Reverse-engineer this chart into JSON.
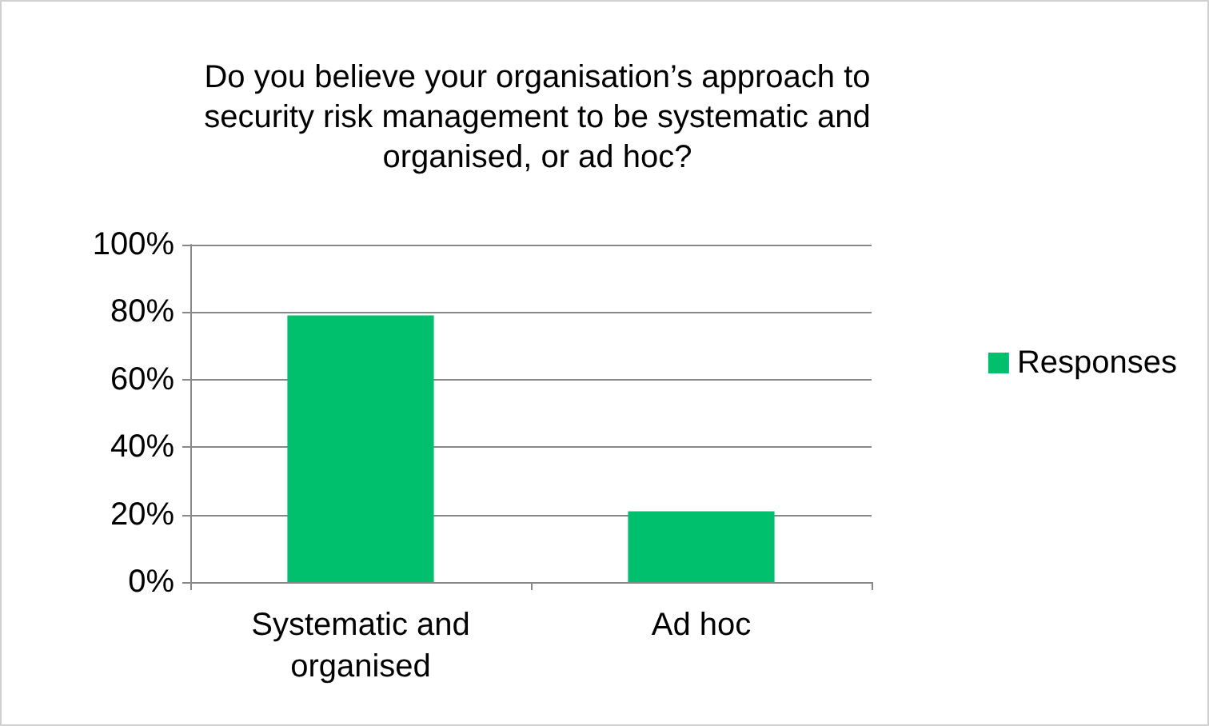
{
  "chart_data": {
    "type": "bar",
    "title": "Do you believe your organisation’s approach to\nsecurity risk management to be systematic and\norganised, or ad hoc?",
    "categories": [
      "Systematic and\norganised",
      "Ad hoc"
    ],
    "series": [
      {
        "name": "Responses",
        "color": "#00c06e",
        "values": [
          79,
          21
        ]
      }
    ],
    "ylim": [
      0,
      100
    ],
    "yticks": [
      {
        "value": 0,
        "label": "0%"
      },
      {
        "value": 20,
        "label": "20%"
      },
      {
        "value": 40,
        "label": "40%"
      },
      {
        "value": 60,
        "label": "60%"
      },
      {
        "value": 80,
        "label": "80%"
      },
      {
        "value": 100,
        "label": "100%"
      }
    ],
    "grid": "y",
    "legend": "right"
  }
}
